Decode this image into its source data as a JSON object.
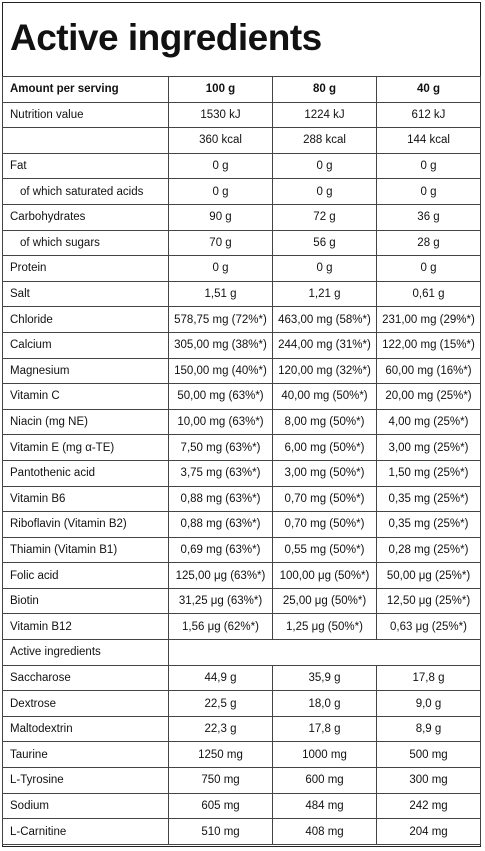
{
  "title": "Active ingredients",
  "header": {
    "label": "Amount per serving",
    "columns": [
      "100 g",
      "80 g",
      "40 g"
    ]
  },
  "rows": [
    {
      "label": "Nutrition value",
      "values": [
        "1530 kJ",
        "1224 kJ",
        "612 kJ"
      ]
    },
    {
      "label": "",
      "values": [
        "360 kcal",
        "288 kcal",
        "144 kcal"
      ]
    },
    {
      "label": "Fat",
      "values": [
        "0 g",
        "0 g",
        "0 g"
      ]
    },
    {
      "label": "of which saturated acids",
      "values": [
        "0 g",
        "0 g",
        "0 g"
      ]
    },
    {
      "label": "Carbohydrates",
      "values": [
        "90 g",
        "72 g",
        "36 g"
      ]
    },
    {
      "label": "of which sugars",
      "values": [
        "70 g",
        "56 g",
        "28 g"
      ]
    },
    {
      "label": "Protein",
      "values": [
        "0 g",
        "0 g",
        "0 g"
      ]
    },
    {
      "label": "Salt",
      "values": [
        "1,51 g",
        "1,21 g",
        "0,61 g"
      ]
    },
    {
      "label": "Chloride",
      "values": [
        "578,75 mg (72%*)",
        "463,00 mg (58%*)",
        "231,00 mg (29%*)"
      ]
    },
    {
      "label": "Calcium",
      "values": [
        "305,00 mg (38%*)",
        "244,00 mg (31%*)",
        "122,00 mg (15%*)"
      ]
    },
    {
      "label": "Magnesium",
      "values": [
        "150,00 mg (40%*)",
        "120,00 mg (32%*)",
        "60,00 mg (16%*)"
      ]
    },
    {
      "label": "Vitamin C",
      "values": [
        "50,00 mg (63%*)",
        "40,00 mg (50%*)",
        "20,00 mg (25%*)"
      ]
    },
    {
      "label": "Niacin (mg NE)",
      "values": [
        "10,00 mg (63%*)",
        "8,00 mg (50%*)",
        "4,00 mg (25%*)"
      ]
    },
    {
      "label": "Vitamin E (mg α-TE)",
      "values": [
        "7,50 mg (63%*)",
        "6,00 mg (50%*)",
        "3,00 mg (25%*)"
      ]
    },
    {
      "label": "Pantothenic acid",
      "values": [
        "3,75 mg (63%*)",
        "3,00 mg (50%*)",
        "1,50 mg (25%*)"
      ]
    },
    {
      "label": "Vitamin B6",
      "values": [
        "0,88 mg (63%*)",
        "0,70 mg (50%*)",
        "0,35 mg (25%*)"
      ]
    },
    {
      "label": "Riboflavin (Vitamin B2)",
      "values": [
        "0,88 mg (63%*)",
        "0,70 mg (50%*)",
        "0,35 mg (25%*)"
      ]
    },
    {
      "label": "Thiamin (Vitamin B1)",
      "values": [
        "0,69 mg (63%*)",
        "0,55 mg (50%*)",
        "0,28 mg (25%*)"
      ]
    },
    {
      "label": "Folic acid",
      "values": [
        "125,00 μg (63%*)",
        "100,00 μg (50%*)",
        "50,00 μg (25%*)"
      ]
    },
    {
      "label": "Biotin",
      "values": [
        "31,25 μg (63%*)",
        "25,00 μg (50%*)",
        "12,50 μg (25%*)"
      ]
    },
    {
      "label": "Vitamin B12",
      "values": [
        "1,56 μg (62%*)",
        "1,25 μg (50%*)",
        "0,63 μg (25%*)"
      ]
    },
    {
      "label": "Active ingredients",
      "values": [
        "",
        "",
        ""
      ]
    },
    {
      "label": "Saccharose",
      "values": [
        "44,9 g",
        "35,9 g",
        "17,8 g"
      ]
    },
    {
      "label": "Dextrose",
      "values": [
        "22,5 g",
        "18,0 g",
        "9,0 g"
      ]
    },
    {
      "label": "Maltodextrin",
      "values": [
        "22,3 g",
        "17,8 g",
        "8,9 g"
      ]
    },
    {
      "label": "Taurine",
      "values": [
        "1250 mg",
        "1000 mg",
        "500 mg"
      ]
    },
    {
      "label": "L-Tyrosine",
      "values": [
        "750 mg",
        "600 mg",
        "300 mg"
      ]
    },
    {
      "label": "Sodium",
      "values": [
        "605 mg",
        "484 mg",
        "242 mg"
      ]
    },
    {
      "label": "L-Carnitine",
      "values": [
        "510 mg",
        "408 mg",
        "204 mg"
      ]
    }
  ]
}
